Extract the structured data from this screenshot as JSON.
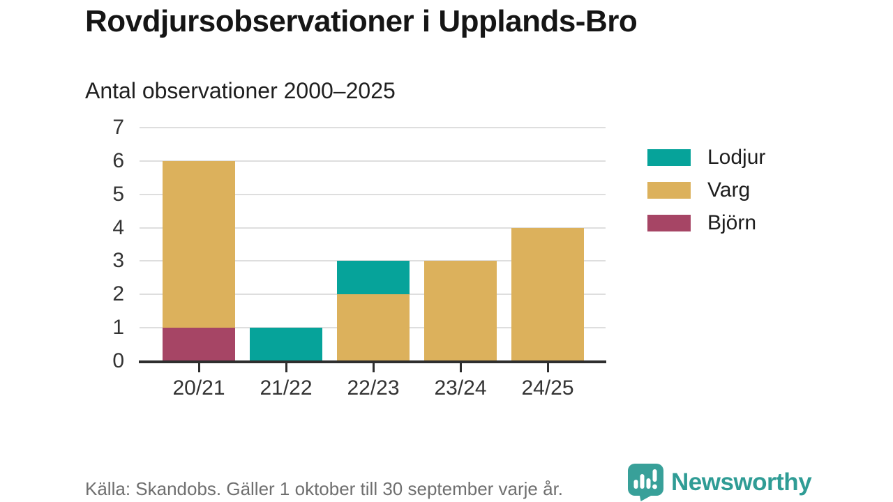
{
  "header": {
    "title": "Rovdjursobservationer i Upplands-Bro",
    "subtitle": "Antal observationer 2000–2025"
  },
  "chart_data": {
    "type": "bar",
    "stacked": true,
    "title": "Rovdjursobservationer i Upplands-Bro",
    "subtitle": "Antal observationer 2000–2025",
    "categories": [
      "20/21",
      "21/22",
      "22/23",
      "23/24",
      "24/25"
    ],
    "series": [
      {
        "name": "Lodjur",
        "color": "#06a39a",
        "values": [
          0,
          1,
          1,
          0,
          0
        ]
      },
      {
        "name": "Varg",
        "color": "#dcb15c",
        "values": [
          5,
          0,
          2,
          3,
          4
        ]
      },
      {
        "name": "Björn",
        "color": "#a64565",
        "values": [
          1,
          0,
          0,
          0,
          0
        ]
      }
    ],
    "stack_order_bottom_to_top": [
      "Björn",
      "Varg",
      "Lodjur"
    ],
    "totals_by_category": [
      6,
      1,
      3,
      3,
      4
    ],
    "xlabel": "",
    "ylabel": "",
    "ylim": [
      0,
      7
    ],
    "yticks": [
      0,
      1,
      2,
      3,
      4,
      5,
      6,
      7
    ],
    "grid": true,
    "legend_position": "right",
    "legend_order": [
      "Lodjur",
      "Varg",
      "Björn"
    ],
    "colors": {
      "gridline": "#dedede",
      "axis": "#2e2e2e",
      "tick_label": "#333333"
    }
  },
  "footer": {
    "source": "Källa: Skandobs. Gäller 1 oktober till 30 september varje år.",
    "brand": "Newsworthy",
    "brand_color": "#2f9c95"
  }
}
